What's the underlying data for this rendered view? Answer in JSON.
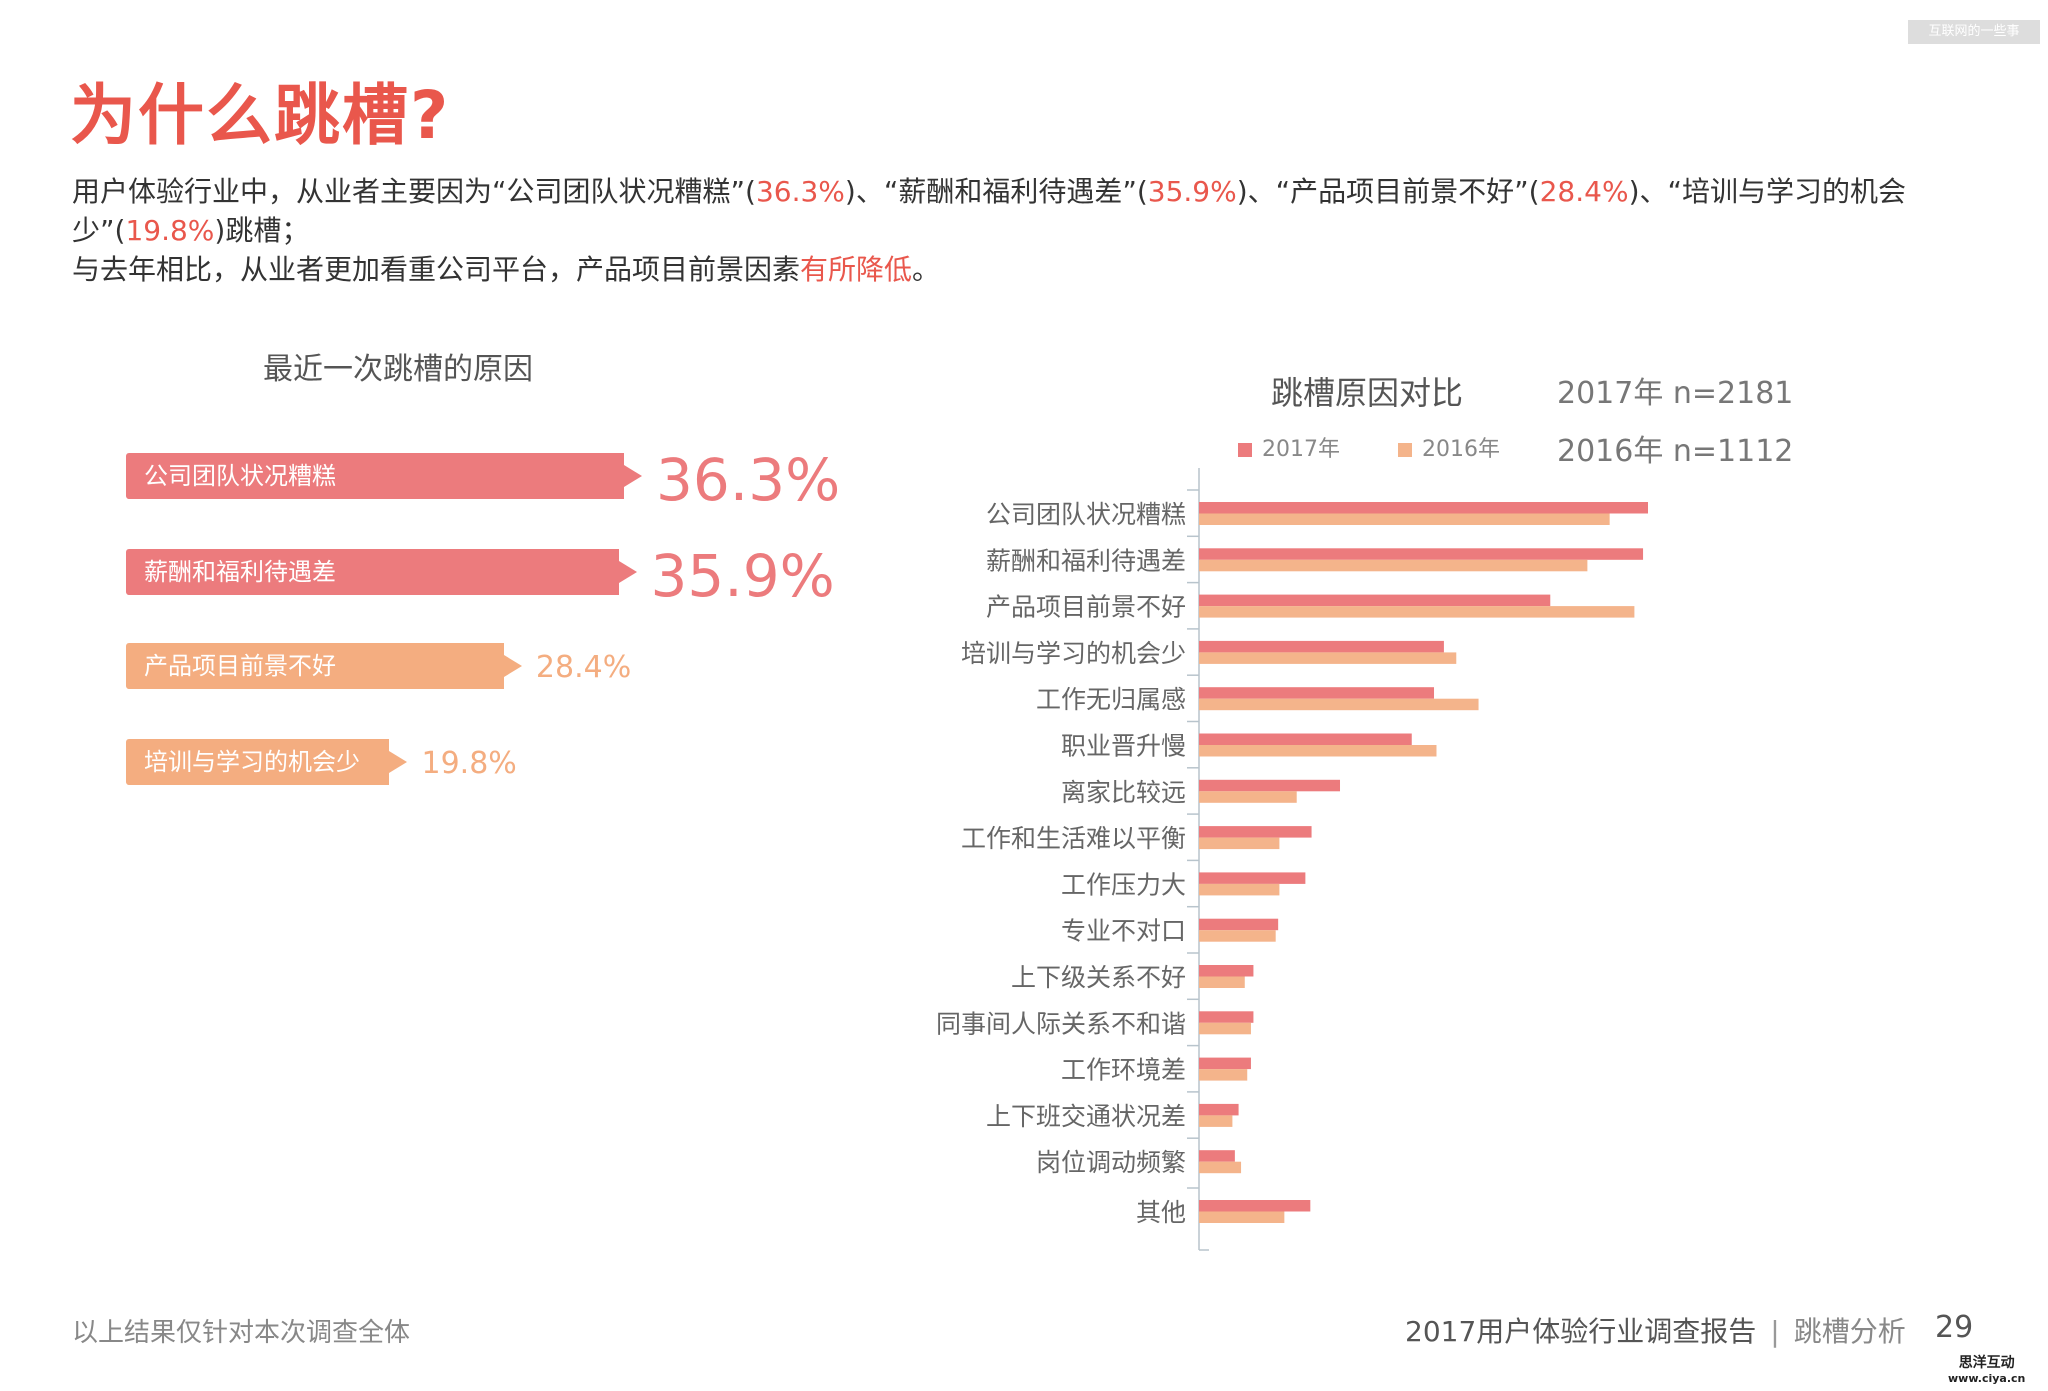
{
  "watermark": "互联网的一些事",
  "title": "为什么跳槽?",
  "description": {
    "p1": [
      "用户体验行业中，从业者主要因为“公司团队状况糟糕”(",
      "36.3%",
      ")、“薪酬和福利待遇差”(",
      "35.9%",
      ")、“产品项目前景不好”(",
      "28.4%",
      ")、“培训与学习的机会少”(",
      "19.8%",
      ")跳槽；"
    ],
    "p2": [
      "与去年相比，从业者更加看重公司平台，产品项目前景因素",
      "有所降低",
      "。"
    ]
  },
  "chart_data": [
    {
      "type": "bar",
      "orientation": "horizontal",
      "title": "最近一次跳槽的原因",
      "categories": [
        "公司团队状况糟糕",
        "薪酬和福利待遇差",
        "产品项目前景不好",
        "培训与学习的机会少"
      ],
      "values": [
        36.3,
        35.9,
        28.4,
        19.8
      ],
      "labels": [
        "36.3%",
        "35.9%",
        "28.4%",
        "19.8%"
      ],
      "colors": [
        "#ec7b7d",
        "#ec7b7d",
        "#f4ad80",
        "#f4ad80"
      ]
    },
    {
      "type": "bar",
      "orientation": "horizontal",
      "title": "跳槽原因对比",
      "sample_sizes": [
        "2017年 n=2181",
        "2016年 n=1112"
      ],
      "legend_position": "top",
      "categories": [
        "公司团队状况糟糕",
        "薪酬和福利待遇差",
        "产品项目前景不好",
        "培训与学习的机会少",
        "工作无归属感",
        "职业晋升慢",
        "离家比较远",
        "工作和生活难以平衡",
        "工作压力大",
        "专业不对口",
        "上下级关系不好",
        "同事间人际关系不和谐",
        "工作环境差",
        "上下班交通状况差",
        "岗位调动频繁",
        "其他"
      ],
      "series": [
        {
          "name": "2017年",
          "color": "#ec7b7d",
          "values": [
            36.3,
            35.9,
            28.4,
            19.8,
            19.0,
            17.2,
            11.4,
            9.1,
            8.6,
            6.4,
            4.4,
            4.4,
            4.2,
            3.2,
            2.9,
            9.0
          ]
        },
        {
          "name": "2016年",
          "color": "#f4b48b",
          "values": [
            33.2,
            31.4,
            35.2,
            20.8,
            22.6,
            19.2,
            7.9,
            6.5,
            6.5,
            6.2,
            3.7,
            4.2,
            3.9,
            2.7,
            3.4,
            6.9
          ]
        }
      ],
      "xlim": [
        0,
        40
      ],
      "grid": false
    }
  ],
  "footer": {
    "note": "以上结果仅针对本次调查全体",
    "report": "2017用户体验行业调查报告",
    "separator": "|",
    "section": "跳槽分析",
    "page": "29"
  },
  "logo": {
    "name": "思洋互动",
    "url": "www.ciya.cn"
  }
}
